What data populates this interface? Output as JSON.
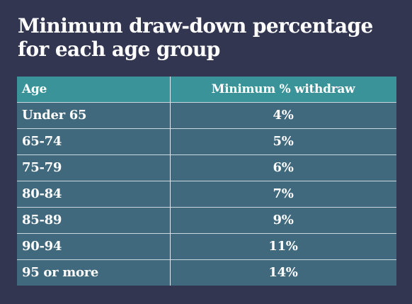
{
  "title": {
    "line1": "Minimum draw-down percentage",
    "line2": "for each age group"
  },
  "table": {
    "headers": [
      "Age",
      "Minimum % withdraw"
    ],
    "rows": [
      {
        "age": "Under 65",
        "pct": "4%"
      },
      {
        "age": "65-74",
        "pct": "5%"
      },
      {
        "age": "75-79",
        "pct": "6%"
      },
      {
        "age": "80-84",
        "pct": "7%"
      },
      {
        "age": "85-89",
        "pct": "9%"
      },
      {
        "age": "90-94",
        "pct": "11%"
      },
      {
        "age": "95 or more",
        "pct": "14%"
      }
    ]
  },
  "colors": {
    "background": "#333651",
    "header": "#3a9399",
    "body": "#40697e",
    "text": "#ffffff"
  }
}
